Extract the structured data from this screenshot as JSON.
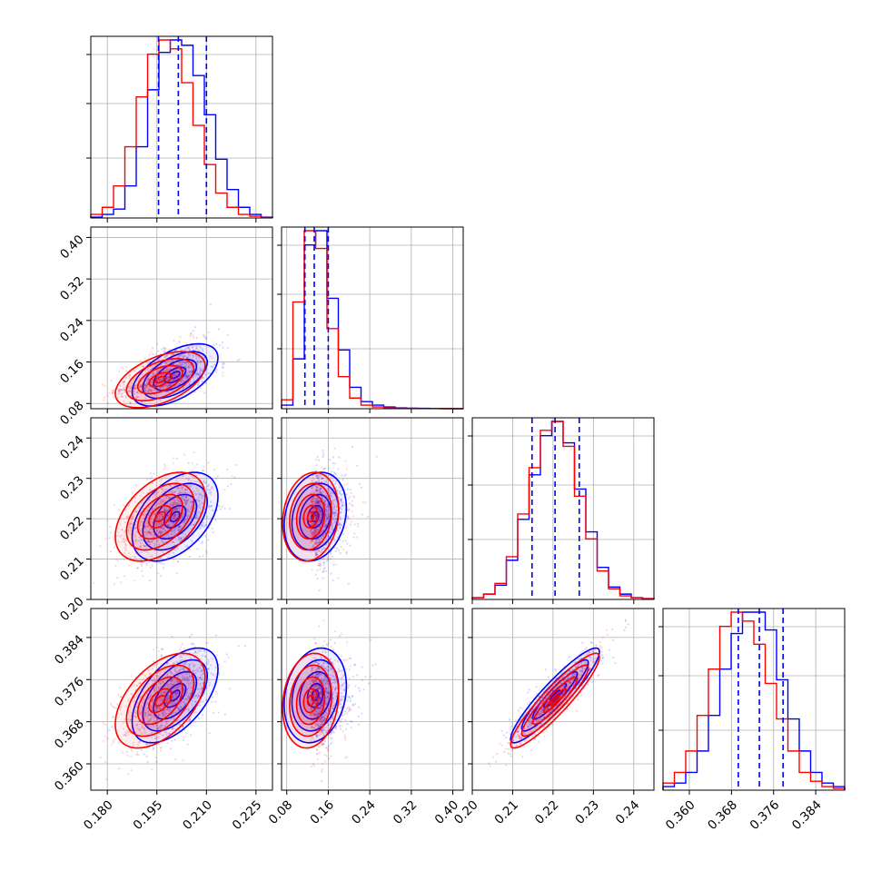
{
  "colors": {
    "series_a": "#0000ff",
    "series_b": "#ff0000",
    "grid": "#b0b0b0",
    "frame": "#000000"
  },
  "chart_data": {
    "type": "corner",
    "grid": true,
    "parameters": [
      {
        "ticks": [
          "0.180",
          "0.195",
          "0.210",
          "0.225"
        ],
        "tick_values": [
          0.18,
          0.195,
          0.21,
          0.225
        ],
        "range": [
          0.175,
          0.23
        ]
      },
      {
        "ticks": [
          "0.08",
          "0.16",
          "0.24",
          "0.32",
          "0.40"
        ],
        "tick_values": [
          0.08,
          0.16,
          0.24,
          0.32,
          0.4
        ],
        "range": [
          0.07,
          0.42
        ]
      },
      {
        "ticks": [
          "0.20",
          "0.21",
          "0.22",
          "0.23",
          "0.24"
        ],
        "tick_values": [
          0.2,
          0.21,
          0.22,
          0.23,
          0.24
        ],
        "range": [
          0.2,
          0.245
        ]
      },
      {
        "ticks": [
          "0.360",
          "0.368",
          "0.376",
          "0.384"
        ],
        "tick_values": [
          0.36,
          0.368,
          0.376,
          0.384
        ],
        "range": [
          0.355,
          0.3895
        ]
      }
    ],
    "series": [
      {
        "color": "blue",
        "means": [
          0.2005,
          0.135,
          0.2205,
          0.373
        ],
        "sigmas": [
          0.0065,
          0.03,
          0.0055,
          0.0045
        ],
        "quantiles": [
          [
            0.1955,
            0.2015,
            0.21
          ],
          [
            0.115,
            0.133,
            0.16
          ],
          [
            0.2148,
            0.2205,
            0.2265
          ],
          [
            0.3693,
            0.3733,
            0.3778
          ]
        ],
        "histograms": [
          [
            0.005,
            0.02,
            0.05,
            0.18,
            0.4,
            0.72,
            0.93,
            1.0,
            0.97,
            0.8,
            0.58,
            0.33,
            0.16,
            0.06,
            0.02,
            0.005
          ],
          [
            0.02,
            0.28,
            0.92,
            1.0,
            0.62,
            0.33,
            0.12,
            0.04,
            0.02,
            0.01,
            0.005,
            0.003,
            0.002,
            0.001,
            0.001,
            0.0
          ],
          [
            0.01,
            0.03,
            0.08,
            0.22,
            0.45,
            0.7,
            0.92,
            1.0,
            0.88,
            0.62,
            0.38,
            0.18,
            0.07,
            0.03,
            0.01,
            0.005
          ],
          [
            0.02,
            0.04,
            0.1,
            0.22,
            0.42,
            0.68,
            0.88,
            1.0,
            1.0,
            0.9,
            0.62,
            0.4,
            0.22,
            0.1,
            0.04,
            0.02
          ]
        ],
        "correlations": {
          "0-1": 0.55,
          "0-2": 0.45,
          "0-3": 0.55,
          "1-2": 0.2,
          "1-3": 0.2,
          "2-3": 0.92
        }
      },
      {
        "color": "red",
        "means": [
          0.196,
          0.126,
          0.2205,
          0.372
        ],
        "sigmas": [
          0.0068,
          0.027,
          0.0055,
          0.0045
        ],
        "quantiles": [],
        "histograms": [
          [
            0.02,
            0.06,
            0.18,
            0.4,
            0.68,
            0.92,
            1.0,
            0.95,
            0.76,
            0.52,
            0.3,
            0.14,
            0.06,
            0.02,
            0.01,
            0.003
          ],
          [
            0.05,
            0.6,
            1.0,
            0.9,
            0.45,
            0.18,
            0.06,
            0.02,
            0.01,
            0.005,
            0.003,
            0.002,
            0.001,
            0.001,
            0.0,
            0.0
          ],
          [
            0.01,
            0.03,
            0.09,
            0.24,
            0.48,
            0.74,
            0.95,
            1.0,
            0.86,
            0.58,
            0.34,
            0.16,
            0.06,
            0.02,
            0.01,
            0.005
          ],
          [
            0.04,
            0.1,
            0.22,
            0.42,
            0.68,
            0.92,
            1.0,
            0.95,
            0.82,
            0.6,
            0.4,
            0.22,
            0.1,
            0.05,
            0.02,
            0.01
          ]
        ],
        "correlations": {
          "0-1": 0.5,
          "0-2": 0.45,
          "0-3": 0.5,
          "1-2": 0.15,
          "1-3": 0.15,
          "2-3": 0.92
        }
      }
    ]
  }
}
